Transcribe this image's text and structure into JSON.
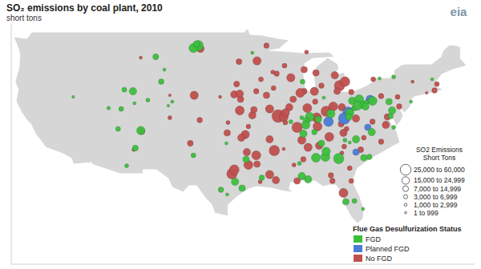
{
  "chart_data": {
    "type": "scatter",
    "title": "SO₂ emissions by coal plant, 2010",
    "subtitle": "short tons",
    "logo": "eia",
    "xlim": [
      -125,
      -66
    ],
    "ylim": [
      20,
      50
    ],
    "tick_labels": false,
    "size_range": [
      0,
      60000
    ],
    "size_legend_title": [
      "SO2 Emissions",
      "Short Tons"
    ],
    "size_classes": [
      {
        "label": "25,000 to 60,000",
        "min": 25000,
        "max": 60000
      },
      {
        "label": "15,000 to 24,999",
        "min": 15000,
        "max": 24999
      },
      {
        "label": "7,000 to 14,999",
        "min": 7000,
        "max": 14999
      },
      {
        "label": "3,000 to 6,999",
        "min": 3000,
        "max": 6999
      },
      {
        "label": "1,000 to 2,999",
        "min": 1000,
        "max": 2999
      },
      {
        "label": "1 to 999",
        "min": 1,
        "max": 999
      }
    ],
    "legend_title": "Flue Gas Desulfurization Status",
    "series": [
      {
        "name": "FGD",
        "color": "#3dbf3d",
        "x": [
          -101.2,
          -101.8,
          -101.4,
          -106.6,
          -109.5,
          -110.6,
          -105.5,
          -105.9,
          -107.6,
          -104.5,
          -105.0,
          -112.6,
          -111.0,
          -109.3,
          -117.1,
          -111.4,
          -109.2,
          -110.3,
          -108.5,
          -95.1,
          -96.5,
          -97.5,
          -98.3,
          -95.6,
          -101.8,
          -97.6,
          -94.3,
          -87.9,
          -89.4,
          -88.0,
          -87.0,
          -87.4,
          -85.2,
          -81.6,
          -80.7,
          -84.3,
          -81.3,
          -79.0,
          -76.9,
          -80.2,
          -79.8,
          -80.9,
          -81.9,
          -79.9,
          -82.0,
          -87.5,
          -85.9,
          -87.8,
          -85.5,
          -86.4,
          -76.3,
          -79.1,
          -81.1,
          -82.5,
          -81.9,
          -80.1,
          -79.4,
          -85.0,
          -83.3,
          -84.9,
          -86.2,
          -88.0,
          -88.3,
          -93.1,
          -82.4,
          -87.2,
          -81.3,
          -80.2,
          -76.3,
          -71.4,
          -74.1,
          -76.5,
          -76.7,
          -78.1
        ],
        "y": [
          47.3,
          47.0,
          47.5,
          45.9,
          41.6,
          41.8,
          44.3,
          42.8,
          40.5,
          40.3,
          39.8,
          39.5,
          39.4,
          40.1,
          40.9,
          36.9,
          34.5,
          32.3,
          36.7,
          33.1,
          30.3,
          28.7,
          29.3,
          29.5,
          33.6,
          35.1,
          46.4,
          42.8,
          37.8,
          38.3,
          38.4,
          37.9,
          40.8,
          40.4,
          40.6,
          38.8,
          39.5,
          40.4,
          40.3,
          39.9,
          40.2,
          39.8,
          38.9,
          39.7,
          38.4,
          37.4,
          38.1,
          36.3,
          35.1,
          36.5,
          37.1,
          36.5,
          35.6,
          35.5,
          35.2,
          33.3,
          33.4,
          33.4,
          33.2,
          34.1,
          33.3,
          31.0,
          32.6,
          30.8,
          27.8,
          30.6,
          27.9,
          26.9,
          43.4,
          43.1,
          40.3,
          39.2,
          38.5,
          43.2
        ],
        "size": [
          40000,
          30000,
          15000,
          12000,
          20000,
          8000,
          3000,
          10000,
          5000,
          3000,
          2000,
          4000,
          8000,
          3000,
          2000,
          8000,
          12000,
          5000,
          25000,
          15000,
          20000,
          3000,
          10000,
          15000,
          8000,
          3000,
          3000,
          8000,
          5000,
          5000,
          30000,
          15000,
          3000,
          20000,
          30000,
          25000,
          10000,
          30000,
          15000,
          20000,
          8000,
          30000,
          25000,
          20000,
          15000,
          25000,
          15000,
          20000,
          15000,
          10000,
          5000,
          20000,
          20000,
          5000,
          3000,
          15000,
          10000,
          30000,
          40000,
          25000,
          30000,
          20000,
          5000,
          10000,
          15000,
          20000,
          8000,
          3000,
          5000,
          3000,
          3000,
          20000,
          10000,
          3000
        ]
      },
      {
        "name": "Planned FGD",
        "color": "#4a7cd6",
        "x": [
          -82.1,
          -79.3,
          -84.6,
          -82.6,
          -79.6,
          -81.1
        ],
        "y": [
          39.0,
          40.6,
          37.8,
          38.2,
          37.1,
          34.0
        ],
        "size": [
          40000,
          25000,
          35000,
          50000,
          15000,
          15000
        ]
      },
      {
        "name": "No FGD",
        "color": "#c0504d",
        "x": [
          -100.9,
          -108.5,
          -104.8,
          -104.8,
          -109.4,
          -108.4,
          -96.9,
          -94.8,
          -102.2,
          -96.6,
          -95.2,
          -95.7,
          -97.5,
          -95.0,
          -95.9,
          -94.8,
          -97.4,
          -101.0,
          -96.6,
          -95.8,
          -101.7,
          -98.4,
          -91.0,
          -90.3,
          -92.1,
          -94.3,
          -94.1,
          -90.1,
          -95.9,
          -93.8,
          -91.6,
          -93.2,
          -96.3,
          -92.5,
          -93.7,
          -92.5,
          -96.0,
          -91.7,
          -89.4,
          -87.7,
          -90.2,
          -91.2,
          -89.6,
          -90.1,
          -87.7,
          -89.1,
          -88.2,
          -87.3,
          -86.3,
          -86.4,
          -86.1,
          -84.9,
          -83.2,
          -82.5,
          -85.5,
          -86.2,
          -83.8,
          -87.4,
          -84.0,
          -82.9,
          -83.5,
          -81.7,
          -75.8,
          -77.9,
          -81.1,
          -86.0,
          -88.6,
          -83.0,
          -84.5,
          -88.0,
          -82.7,
          -77.3,
          -82.3,
          -79.0,
          -77.9,
          -80.1,
          -82.6,
          -80.5,
          -81.9,
          -84.3,
          -82.9,
          -87.2,
          -87.8,
          -85.8,
          -88.6,
          -89.0,
          -90.3,
          -91.3,
          -93.7,
          -92.1,
          -93.3,
          -91.5,
          -93.8,
          -92.1,
          -82.7,
          -84.1,
          -81.7,
          -73.9,
          -78.9,
          -71.1,
          -70.8,
          -72.1,
          -75.6,
          -77.1
        ],
        "y": [
          46.9,
          45.8,
          41.1,
          38.3,
          34.3,
          36.6,
          31.3,
          32.4,
          35.1,
          31.8,
          36.2,
          35.8,
          36.4,
          34.0,
          39.2,
          37.2,
          37.7,
          38.0,
          41.2,
          40.6,
          41.1,
          40.9,
          38.5,
          38.4,
          39.4,
          38.6,
          39.3,
          37.7,
          41.3,
          41.6,
          42.0,
          43.1,
          42.5,
          41.1,
          45.4,
          47.3,
          45.3,
          44.0,
          43.3,
          44.3,
          44.8,
          43.8,
          39.6,
          38.9,
          41.6,
          40.6,
          41.4,
          39.5,
          40.3,
          41.6,
          38.3,
          39.1,
          42.3,
          42.8,
          42.3,
          43.9,
          43.6,
          46.5,
          39.7,
          39.6,
          41.6,
          41.5,
          40.9,
          41.0,
          38.2,
          37.2,
          37.1,
          37.5,
          35.9,
          35.5,
          36.4,
          37.4,
          36.9,
          37.8,
          35.3,
          35.8,
          34.7,
          34.3,
          32.0,
          31.1,
          33.9,
          34.6,
          33.1,
          34.8,
          30.4,
          32.4,
          34.4,
          30.5,
          32.5,
          31.2,
          30.3,
          34.2,
          33.6,
          35.6,
          28.9,
          30.4,
          30.4,
          42.8,
          43.1,
          41.7,
          42.5,
          41.4,
          39.7,
          38.4
        ],
        "size": [
          20000,
          3000,
          2000,
          5000,
          4000,
          15000,
          40000,
          30000,
          12000,
          35000,
          25000,
          20000,
          15000,
          20000,
          30000,
          7000,
          5000,
          10000,
          20000,
          15000,
          25000,
          3000,
          60000,
          30000,
          25000,
          20000,
          15000,
          8000,
          20000,
          10000,
          8000,
          8000,
          12000,
          15000,
          25000,
          10000,
          12000,
          5000,
          25000,
          15000,
          8000,
          10000,
          20000,
          25000,
          12000,
          15000,
          30000,
          30000,
          10000,
          25000,
          35000,
          40000,
          40000,
          35000,
          10000,
          15000,
          20000,
          5000,
          30000,
          20000,
          15000,
          10000,
          8000,
          10000,
          20000,
          30000,
          40000,
          12000,
          30000,
          25000,
          20000,
          20000,
          8000,
          10000,
          10000,
          8000,
          8000,
          12000,
          8000,
          10000,
          5000,
          25000,
          10000,
          20000,
          15000,
          5000,
          3000,
          20000,
          15000,
          25000,
          5000,
          40000,
          30000,
          20000,
          30000,
          10000,
          8000,
          3000,
          8000,
          10000,
          8000,
          2000,
          10000,
          15000
        ]
      }
    ]
  }
}
